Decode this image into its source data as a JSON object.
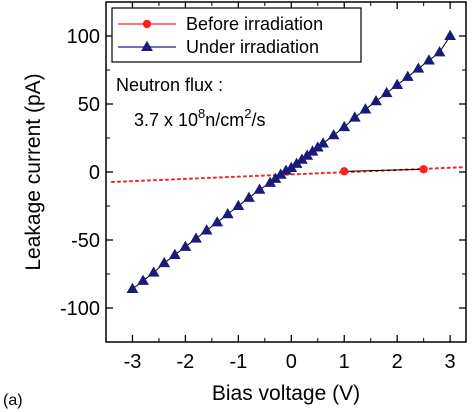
{
  "chart_data": {
    "type": "scatter",
    "panel_label": "(a)",
    "xlabel": "Bias voltage (V)",
    "ylabel": "Leakage current (pA)",
    "xlim": [
      -3.5,
      3.3
    ],
    "ylim": [
      -125,
      125
    ],
    "x_ticks": [
      -3,
      -2,
      -1,
      0,
      1,
      2,
      3
    ],
    "y_ticks": [
      -100,
      -50,
      0,
      50,
      100
    ],
    "x_tick_labels": [
      "-3",
      "-2",
      "-1",
      "0",
      "1",
      "2",
      "3"
    ],
    "y_tick_labels": [
      "-100",
      "-50",
      "0",
      "50",
      "100"
    ],
    "legend_position": "top-right",
    "series": [
      {
        "name": "Before irradiation",
        "color": "#ff2020",
        "marker": "circle",
        "x": [
          1.0,
          2.5
        ],
        "y": [
          0.5,
          2.0
        ],
        "fit_line": {
          "x": [
            -3.5,
            3.3
          ],
          "y": [
            -7.5,
            3.5
          ],
          "style": "dotted"
        }
      },
      {
        "name": "Under irradiation",
        "color": "#1a1a7a",
        "marker": "triangle",
        "x": [
          -3.0,
          -2.8,
          -2.6,
          -2.4,
          -2.2,
          -2.0,
          -1.8,
          -1.6,
          -1.4,
          -1.2,
          -1.0,
          -0.8,
          -0.6,
          -0.4,
          -0.3,
          -0.2,
          -0.1,
          0.0,
          0.1,
          0.2,
          0.3,
          0.4,
          0.5,
          0.6,
          0.8,
          1.0,
          1.2,
          1.4,
          1.6,
          1.8,
          2.0,
          2.2,
          2.4,
          2.6,
          2.8,
          3.0
        ],
        "y": [
          -86,
          -80,
          -74,
          -67,
          -61,
          -55,
          -49,
          -43,
          -37,
          -31,
          -25,
          -19,
          -13,
          -8,
          -5,
          -2,
          1,
          3,
          6,
          9,
          12,
          15,
          18,
          21,
          27,
          33,
          40,
          46,
          52,
          58,
          64,
          70,
          76,
          82,
          88,
          100
        ]
      }
    ],
    "annotations": [
      {
        "text": "Neutron flux :"
      },
      {
        "text_parts": [
          "3.7 x 10",
          "8",
          "n/cm",
          "2",
          "/s"
        ]
      }
    ]
  }
}
